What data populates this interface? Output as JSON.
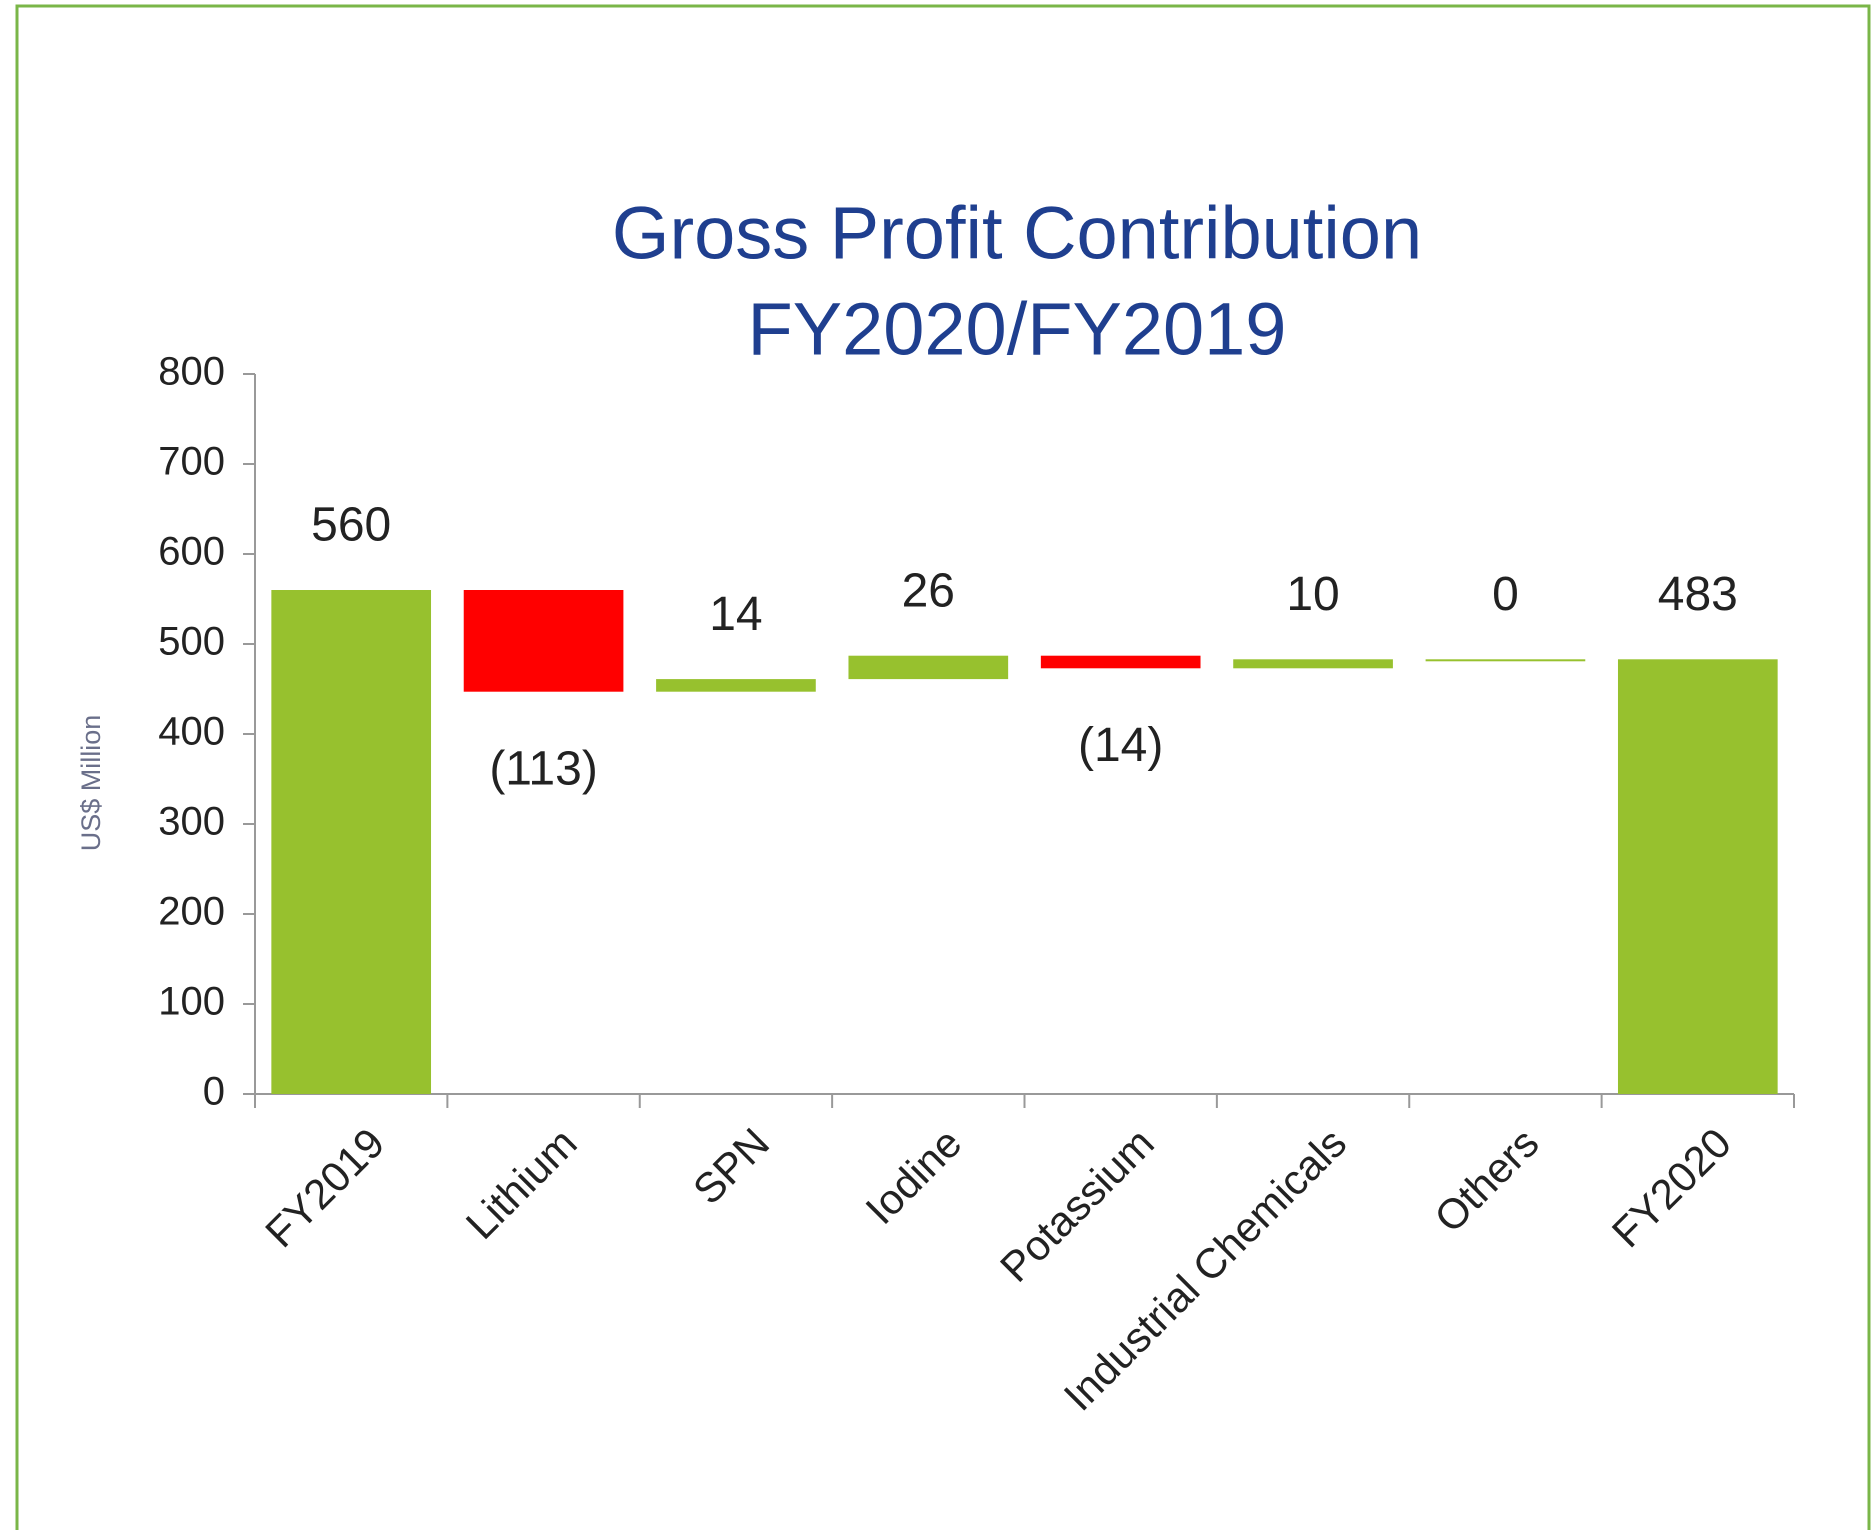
{
  "chart_data": {
    "type": "waterfall",
    "title": [
      "Gross Profit Contribution",
      "FY2020/FY2019"
    ],
    "y_axis_label": "US$ Million",
    "categories": [
      "FY2019",
      "Lithium",
      "SPN",
      "Iodine",
      "Potassium",
      "Industrial Chemicals",
      "Others",
      "FY2020"
    ],
    "values": [
      560,
      -113,
      14,
      26,
      -14,
      10,
      0,
      483
    ],
    "value_labels": [
      "560",
      "(113)",
      "14",
      "26",
      "(14)",
      "10",
      "0",
      "483"
    ],
    "colors": {
      "increase": "#97c12e",
      "decrease": "#ff0000"
    },
    "ylim": [
      0,
      800
    ],
    "yticks": [
      0,
      100,
      200,
      300,
      400,
      500,
      600,
      700,
      800
    ],
    "grid": false
  }
}
